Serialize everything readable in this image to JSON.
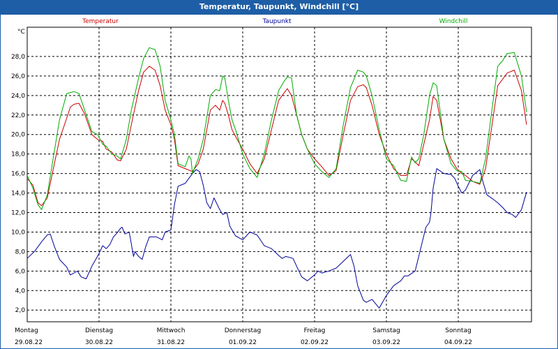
{
  "window": {
    "title": "Temperatur, Taupunkt, Windchill [°C]"
  },
  "chart_data": {
    "type": "line",
    "title": "Temperatur, Taupunkt, Windchill [°C]",
    "ylabel": "°C",
    "xlabel": "",
    "ylim": [
      0.8,
      31.0
    ],
    "xlim": [
      0,
      7
    ],
    "grid": true,
    "y_ticks": [
      "2,0",
      "4,0",
      "6,0",
      "8,0",
      "10,0",
      "12,0",
      "14,0",
      "16,0",
      "18,0",
      "20,0",
      "22,0",
      "24,0",
      "26,0",
      "28,0"
    ],
    "y_tick_values": [
      2,
      4,
      6,
      8,
      10,
      12,
      14,
      16,
      18,
      20,
      22,
      24,
      26,
      28
    ],
    "day_labels": [
      {
        "day": "Montag",
        "date": "29.08.22"
      },
      {
        "day": "Dienstag",
        "date": "30.08.22"
      },
      {
        "day": "Mittwoch",
        "date": "31.08.22"
      },
      {
        "day": "Donnerstag",
        "date": "01.09.22"
      },
      {
        "day": "Freitag",
        "date": "02.09.22"
      },
      {
        "day": "Samstag",
        "date": "03.09.22"
      },
      {
        "day": "Sonntag",
        "date": "04.09.22"
      }
    ],
    "series": [
      {
        "name": "Temperatur",
        "color": "#cc0000",
        "x": [
          0,
          0.08,
          0.15,
          0.2,
          0.28,
          0.35,
          0.45,
          0.55,
          0.6,
          0.65,
          0.72,
          0.8,
          0.9,
          0.98,
          1.05,
          1.1,
          1.18,
          1.25,
          1.3,
          1.38,
          1.45,
          1.55,
          1.62,
          1.7,
          1.78,
          1.85,
          1.92,
          2.0,
          2.05,
          2.1,
          2.2,
          2.3,
          2.38,
          2.45,
          2.55,
          2.62,
          2.68,
          2.72,
          2.75,
          2.8,
          2.85,
          2.9,
          3.0,
          3.1,
          3.2,
          3.3,
          3.4,
          3.5,
          3.58,
          3.62,
          3.68,
          3.75,
          3.82,
          3.9,
          4.0,
          4.1,
          4.2,
          4.3,
          4.4,
          4.5,
          4.6,
          4.68,
          4.72,
          4.8,
          4.9,
          5.0,
          5.1,
          5.2,
          5.28,
          5.35,
          5.4,
          5.45,
          5.52,
          5.6,
          5.65,
          5.7,
          5.8,
          5.9,
          5.98,
          6.05,
          6.1,
          6.2,
          6.3,
          6.38,
          6.45,
          6.55,
          6.62,
          6.68,
          6.78,
          6.88,
          6.95
        ],
        "values": [
          15.5,
          14.8,
          13.0,
          12.7,
          13.5,
          16.0,
          19.5,
          21.7,
          22.8,
          23.1,
          23.2,
          22.1,
          20.0,
          19.5,
          19.3,
          18.5,
          18.2,
          17.4,
          17.3,
          18.5,
          21.0,
          24.5,
          26.4,
          27.0,
          26.6,
          25.0,
          22.5,
          21.0,
          19.5,
          16.8,
          16.5,
          16.2,
          17.0,
          18.5,
          22.5,
          23.0,
          22.5,
          23.5,
          23.2,
          22.0,
          20.5,
          19.8,
          18.5,
          17.0,
          16.0,
          17.5,
          20.5,
          23.5,
          24.3,
          24.7,
          24.0,
          22.0,
          20.0,
          18.5,
          17.5,
          16.7,
          15.8,
          16.3,
          20.0,
          23.5,
          24.9,
          25.1,
          24.8,
          23.0,
          20.0,
          18.0,
          16.5,
          15.8,
          15.8,
          17.5,
          17.2,
          16.8,
          19.0,
          21.5,
          23.9,
          23.5,
          19.5,
          17.5,
          16.5,
          16.0,
          15.8,
          15.2,
          14.9,
          16.5,
          20.0,
          25.0,
          25.7,
          26.3,
          26.6,
          24.5,
          21.0
        ]
      },
      {
        "name": "Taupunkt",
        "color": "#000099",
        "x": [
          0,
          0.1,
          0.2,
          0.28,
          0.32,
          0.38,
          0.45,
          0.55,
          0.6,
          0.7,
          0.75,
          0.82,
          0.9,
          1.0,
          1.05,
          1.1,
          1.15,
          1.2,
          1.25,
          1.3,
          1.32,
          1.36,
          1.42,
          1.48,
          1.5,
          1.55,
          1.6,
          1.65,
          1.7,
          1.8,
          1.88,
          1.92,
          2.0,
          2.05,
          2.1,
          2.2,
          2.25,
          2.3,
          2.35,
          2.4,
          2.45,
          2.5,
          2.55,
          2.6,
          2.68,
          2.72,
          2.78,
          2.82,
          2.9,
          3.0,
          3.05,
          3.1,
          3.2,
          3.3,
          3.4,
          3.5,
          3.55,
          3.6,
          3.7,
          3.75,
          3.82,
          3.9,
          4.0,
          4.05,
          4.1,
          4.2,
          4.3,
          4.4,
          4.5,
          4.55,
          4.6,
          4.68,
          4.72,
          4.8,
          4.9,
          5.0,
          5.1,
          5.2,
          5.25,
          5.3,
          5.4,
          5.5,
          5.55,
          5.6,
          5.62,
          5.65,
          5.7,
          5.8,
          5.9,
          5.95,
          6.0,
          6.05,
          6.1,
          6.2,
          6.3,
          6.35,
          6.4,
          6.48,
          6.55,
          6.62,
          6.68,
          6.75,
          6.8,
          6.88,
          6.95
        ],
        "values": [
          7.3,
          8.0,
          9.0,
          9.7,
          9.8,
          8.5,
          7.2,
          6.4,
          5.6,
          6.0,
          5.4,
          5.2,
          6.5,
          7.8,
          8.6,
          8.3,
          8.7,
          9.5,
          9.9,
          10.4,
          10.5,
          9.8,
          10.0,
          7.5,
          8.0,
          7.5,
          7.2,
          8.5,
          9.5,
          9.5,
          9.2,
          10.0,
          10.2,
          12.8,
          14.7,
          15.0,
          15.5,
          16.0,
          16.4,
          16.2,
          14.8,
          13.0,
          12.4,
          13.5,
          12.3,
          11.8,
          12.0,
          10.6,
          9.6,
          9.2,
          9.6,
          10.0,
          9.7,
          8.6,
          8.3,
          7.6,
          7.3,
          7.5,
          7.3,
          6.5,
          5.4,
          5.0,
          5.6,
          6.0,
          5.8,
          6.0,
          6.3,
          7.0,
          7.7,
          6.5,
          4.5,
          3.0,
          2.8,
          3.1,
          2.2,
          3.5,
          4.5,
          5.0,
          5.5,
          5.5,
          6.0,
          9.0,
          10.5,
          11.0,
          12.0,
          14.5,
          16.5,
          16.0,
          15.9,
          15.5,
          14.7,
          14.0,
          14.3,
          15.8,
          16.4,
          15.0,
          13.8,
          13.4,
          13.0,
          12.5,
          12.0,
          11.8,
          11.5,
          12.3,
          14.1
        ]
      },
      {
        "name": "Windchill",
        "color": "#00aa00",
        "x": [
          0,
          0.08,
          0.15,
          0.2,
          0.28,
          0.35,
          0.45,
          0.55,
          0.6,
          0.65,
          0.72,
          0.8,
          0.9,
          0.98,
          1.05,
          1.1,
          1.18,
          1.25,
          1.3,
          1.38,
          1.45,
          1.55,
          1.62,
          1.7,
          1.78,
          1.85,
          1.92,
          2.0,
          2.05,
          2.1,
          2.2,
          2.25,
          2.28,
          2.3,
          2.38,
          2.45,
          2.55,
          2.62,
          2.68,
          2.72,
          2.75,
          2.8,
          2.85,
          2.9,
          3.0,
          3.1,
          3.2,
          3.3,
          3.4,
          3.5,
          3.58,
          3.62,
          3.68,
          3.75,
          3.82,
          3.9,
          4.0,
          4.1,
          4.2,
          4.3,
          4.4,
          4.5,
          4.6,
          4.68,
          4.72,
          4.8,
          4.9,
          5.0,
          5.1,
          5.2,
          5.28,
          5.35,
          5.4,
          5.45,
          5.52,
          5.6,
          5.65,
          5.7,
          5.8,
          5.9,
          5.98,
          6.05,
          6.1,
          6.2,
          6.3,
          6.38,
          6.45,
          6.55,
          6.62,
          6.68,
          6.78,
          6.88,
          6.95
        ],
        "values": [
          15.8,
          14.5,
          12.8,
          12.3,
          13.8,
          17.0,
          21.5,
          24.2,
          24.3,
          24.4,
          24.2,
          22.5,
          20.3,
          20.0,
          19.0,
          18.8,
          18.0,
          17.8,
          17.5,
          19.5,
          22.5,
          25.8,
          27.8,
          28.9,
          28.7,
          27.0,
          23.5,
          21.5,
          20.0,
          17.0,
          16.7,
          17.8,
          17.5,
          16.0,
          17.5,
          19.5,
          24.0,
          24.6,
          24.5,
          26.0,
          25.8,
          23.5,
          21.5,
          20.5,
          18.0,
          16.5,
          15.6,
          18.0,
          21.5,
          24.5,
          25.5,
          25.9,
          25.8,
          22.0,
          20.0,
          18.5,
          17.0,
          16.2,
          15.6,
          16.5,
          21.0,
          24.8,
          26.6,
          26.4,
          26.0,
          24.0,
          20.5,
          17.5,
          16.8,
          15.3,
          15.2,
          17.7,
          17.1,
          17.5,
          20.0,
          24.0,
          25.3,
          25.0,
          19.5,
          17.0,
          16.3,
          16.2,
          15.3,
          15.2,
          15.0,
          17.5,
          21.5,
          27.0,
          27.6,
          28.3,
          28.4,
          26.0,
          22.3
        ]
      }
    ]
  }
}
